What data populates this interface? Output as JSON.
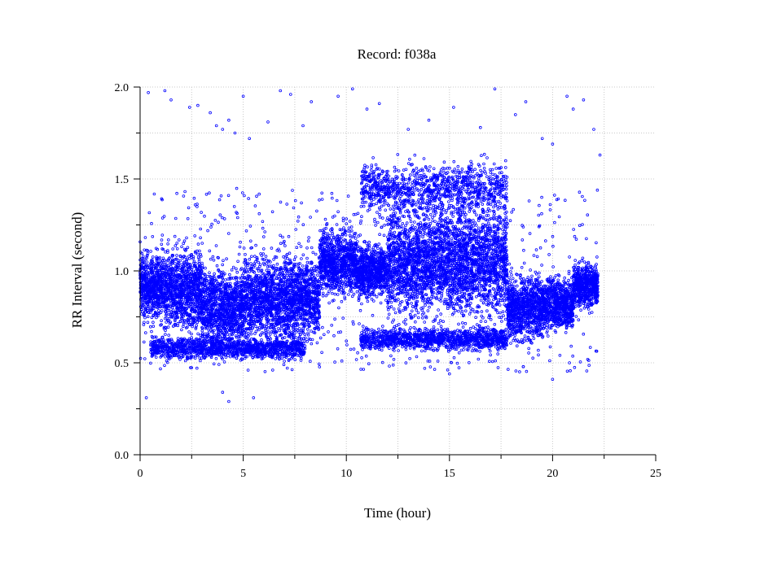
{
  "chart_data": {
    "type": "scatter",
    "title": "Record:  f038a",
    "xlabel": "Time (hour)",
    "ylabel": "RR Interval (second)",
    "xlim": [
      0,
      25
    ],
    "ylim": [
      0,
      2
    ],
    "x_ticks": [
      "0",
      "5",
      "10",
      "15",
      "20",
      "25"
    ],
    "y_ticks": [
      "0.0",
      "0.5",
      "1.0",
      "1.5",
      "2.0"
    ],
    "grid": true,
    "marker": "circle",
    "color": "#0000ff",
    "time_range": [
      0,
      22.2
    ],
    "bands": [
      {
        "x": [
          0,
          1.2
        ],
        "center": 0.92,
        "spread": 0.15
      },
      {
        "x": [
          1.2,
          3
        ],
        "center": 0.9,
        "spread": 0.18
      },
      {
        "x": [
          3,
          5
        ],
        "center": 0.8,
        "spread": 0.18
      },
      {
        "x": [
          5,
          7.5
        ],
        "center": 0.85,
        "spread": 0.2
      },
      {
        "x": [
          7.5,
          8.7
        ],
        "center": 0.85,
        "spread": 0.18
      },
      {
        "x": [
          8.7,
          10.5
        ],
        "center": 1.05,
        "spread": 0.15
      },
      {
        "x": [
          10.5,
          12
        ],
        "center": 1.0,
        "spread": 0.12
      },
      {
        "x": [
          12,
          14.5
        ],
        "center": 1.05,
        "spread": 0.25
      },
      {
        "x": [
          14.5,
          17.8
        ],
        "center": 1.05,
        "spread": 0.25
      },
      {
        "x": [
          17.8,
          19.5
        ],
        "center": 0.8,
        "spread": 0.15
      },
      {
        "x": [
          19.5,
          21
        ],
        "center": 0.82,
        "spread": 0.12
      },
      {
        "x": [
          21,
          22.2
        ],
        "center": 0.92,
        "spread": 0.1
      }
    ],
    "low_bands": [
      {
        "x": [
          0.5,
          8
        ],
        "center": 0.58,
        "spread": 0.05
      },
      {
        "x": [
          10.7,
          17.8
        ],
        "center": 0.63,
        "spread": 0.05
      }
    ],
    "high_bands": [
      {
        "x": [
          10.7,
          14.3
        ],
        "center": 1.45,
        "spread": 0.12
      },
      {
        "x": [
          14.3,
          17.8
        ],
        "center": 1.45,
        "spread": 0.12
      }
    ],
    "outliers": [
      [
        0.4,
        1.97
      ],
      [
        1.2,
        1.98
      ],
      [
        1.5,
        1.93
      ],
      [
        2.4,
        1.89
      ],
      [
        2.8,
        1.9
      ],
      [
        3.4,
        1.86
      ],
      [
        3.7,
        1.79
      ],
      [
        4.0,
        1.77
      ],
      [
        4.3,
        1.82
      ],
      [
        4.6,
        1.75
      ],
      [
        5.0,
        1.95
      ],
      [
        5.3,
        1.72
      ],
      [
        6.2,
        1.81
      ],
      [
        6.8,
        1.98
      ],
      [
        7.3,
        1.96
      ],
      [
        7.9,
        1.79
      ],
      [
        8.3,
        1.92
      ],
      [
        9.6,
        1.95
      ],
      [
        10.3,
        1.99
      ],
      [
        11.0,
        1.88
      ],
      [
        11.6,
        1.91
      ],
      [
        13.0,
        1.77
      ],
      [
        14.0,
        1.82
      ],
      [
        15.2,
        1.89
      ],
      [
        16.5,
        1.78
      ],
      [
        17.2,
        1.99
      ],
      [
        18.2,
        1.85
      ],
      [
        18.7,
        1.92
      ],
      [
        19.5,
        1.72
      ],
      [
        20.0,
        1.69
      ],
      [
        20.7,
        1.95
      ],
      [
        21.0,
        1.88
      ],
      [
        21.5,
        1.93
      ],
      [
        22.0,
        1.77
      ],
      [
        22.3,
        1.63
      ],
      [
        0.3,
        0.31
      ],
      [
        4.0,
        0.34
      ],
      [
        4.3,
        0.29
      ],
      [
        5.5,
        0.31
      ],
      [
        20.0,
        0.41
      ],
      [
        13.8,
        0.47
      ],
      [
        15.0,
        0.44
      ]
    ]
  }
}
